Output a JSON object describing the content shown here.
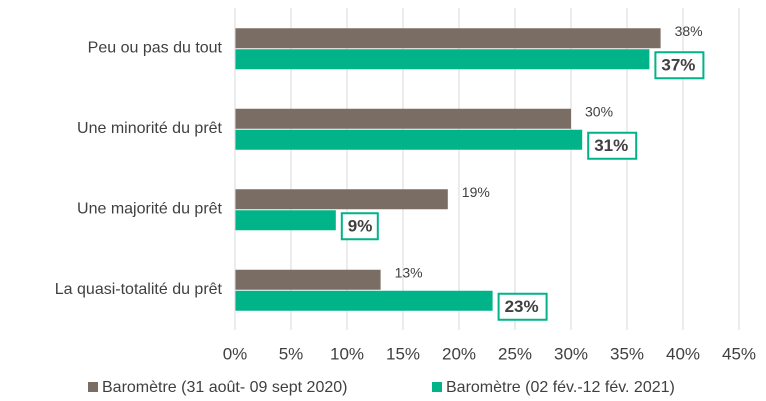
{
  "chart_data": {
    "type": "bar",
    "orientation": "horizontal",
    "categories": [
      "Peu ou pas du tout",
      "Une minorité du prêt",
      "Une majorité du prêt",
      "La quasi-totalité du prêt"
    ],
    "series": [
      {
        "name": "Baromètre (31 août- 09 sept 2020)",
        "color": "#7a6d64",
        "values": [
          38,
          30,
          19,
          13
        ],
        "value_labels": [
          "38%",
          "30%",
          "19%",
          "13%"
        ]
      },
      {
        "name": "Baromètre (02 fév.-12 fév. 2021)",
        "color": "#00b388",
        "values": [
          37,
          31,
          9,
          23
        ],
        "value_labels": [
          "37%",
          "31%",
          "9%",
          "23%"
        ]
      }
    ],
    "xlim": [
      0,
      45
    ],
    "xticks": [
      {
        "value": 0,
        "label": "0%"
      },
      {
        "value": 5,
        "label": "5%"
      },
      {
        "value": 10,
        "label": "10%"
      },
      {
        "value": 15,
        "label": "15%"
      },
      {
        "value": 20,
        "label": "20%"
      },
      {
        "value": 25,
        "label": "25%"
      },
      {
        "value": 30,
        "label": "30%"
      },
      {
        "value": 35,
        "label": "35%"
      },
      {
        "value": 40,
        "label": "40%"
      },
      {
        "value": 45,
        "label": "45%"
      }
    ],
    "grid": true,
    "legend": "bottom"
  }
}
